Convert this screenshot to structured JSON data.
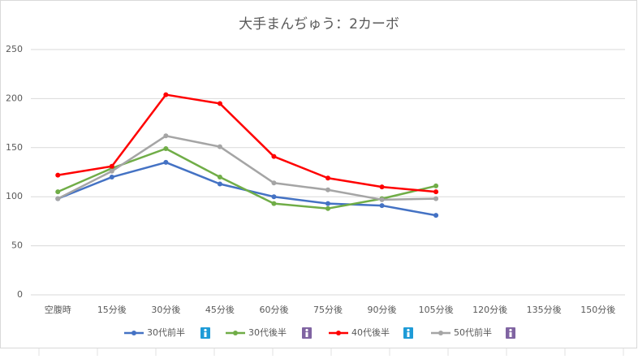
{
  "chart_data": {
    "type": "line",
    "title": "大手まんぢゅう：2カーボ",
    "categories": [
      "空腹時",
      "15分後",
      "30分後",
      "45分後",
      "60分後",
      "75分後",
      "90分後",
      "105分後",
      "120分後",
      "135分後",
      "150分後"
    ],
    "series": [
      {
        "name": "30代前半",
        "color": "#4472c4",
        "values": [
          98,
          120,
          135,
          113,
          100,
          93,
          91,
          81,
          null,
          null,
          null
        ]
      },
      {
        "name": "30代後半",
        "color": "#70ad47",
        "values": [
          105,
          129,
          149,
          120,
          93,
          88,
          98,
          111,
          null,
          null,
          null
        ]
      },
      {
        "name": "40代後半",
        "color": "#ff0000",
        "values": [
          122,
          131,
          204,
          195,
          141,
          119,
          110,
          105,
          null,
          null,
          null
        ]
      },
      {
        "name": "50代前半",
        "color": "#a5a5a5",
        "values": [
          98,
          126,
          162,
          151,
          114,
          107,
          97,
          98,
          null,
          null,
          null
        ]
      }
    ],
    "ylim": [
      0,
      250
    ],
    "yticks": [
      0,
      50,
      100,
      150,
      200,
      250
    ],
    "grid": true,
    "legend": "bottom"
  }
}
